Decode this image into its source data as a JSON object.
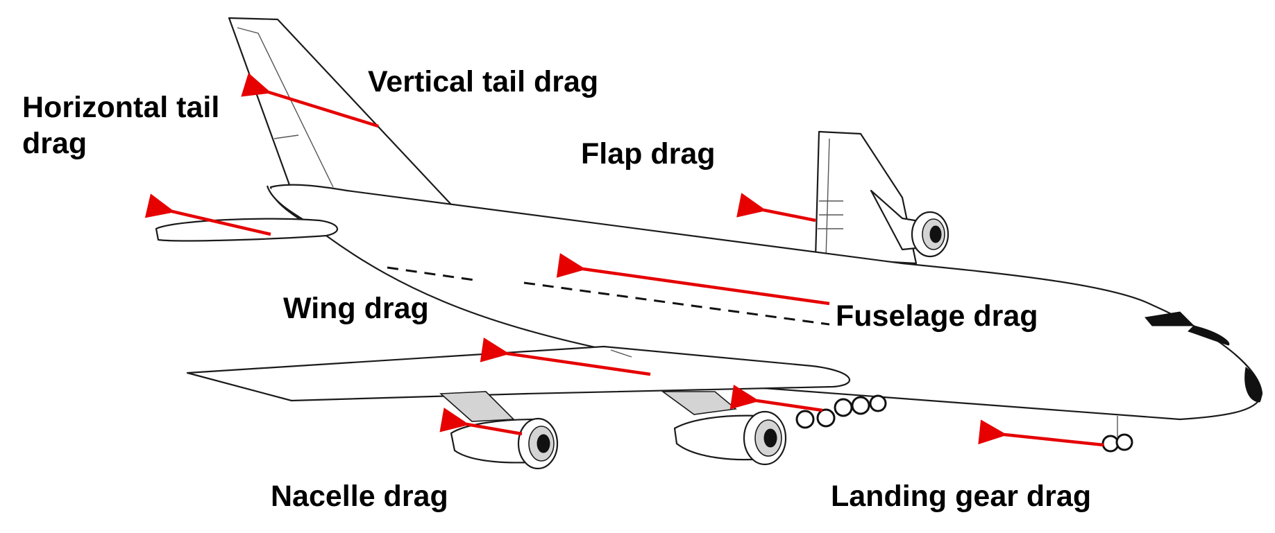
{
  "labels": {
    "vertical_tail": "Vertical tail drag",
    "horizontal_tail": "Horizontal tail\ndrag",
    "flap": "Flap drag",
    "wing": "Wing drag",
    "fuselage": "Fuselage drag",
    "nacelle": "Nacelle drag",
    "landing_gear": "Landing gear drag"
  },
  "colors": {
    "arrow": "#e60000",
    "outline": "#1a1a1a",
    "text": "#000000"
  }
}
